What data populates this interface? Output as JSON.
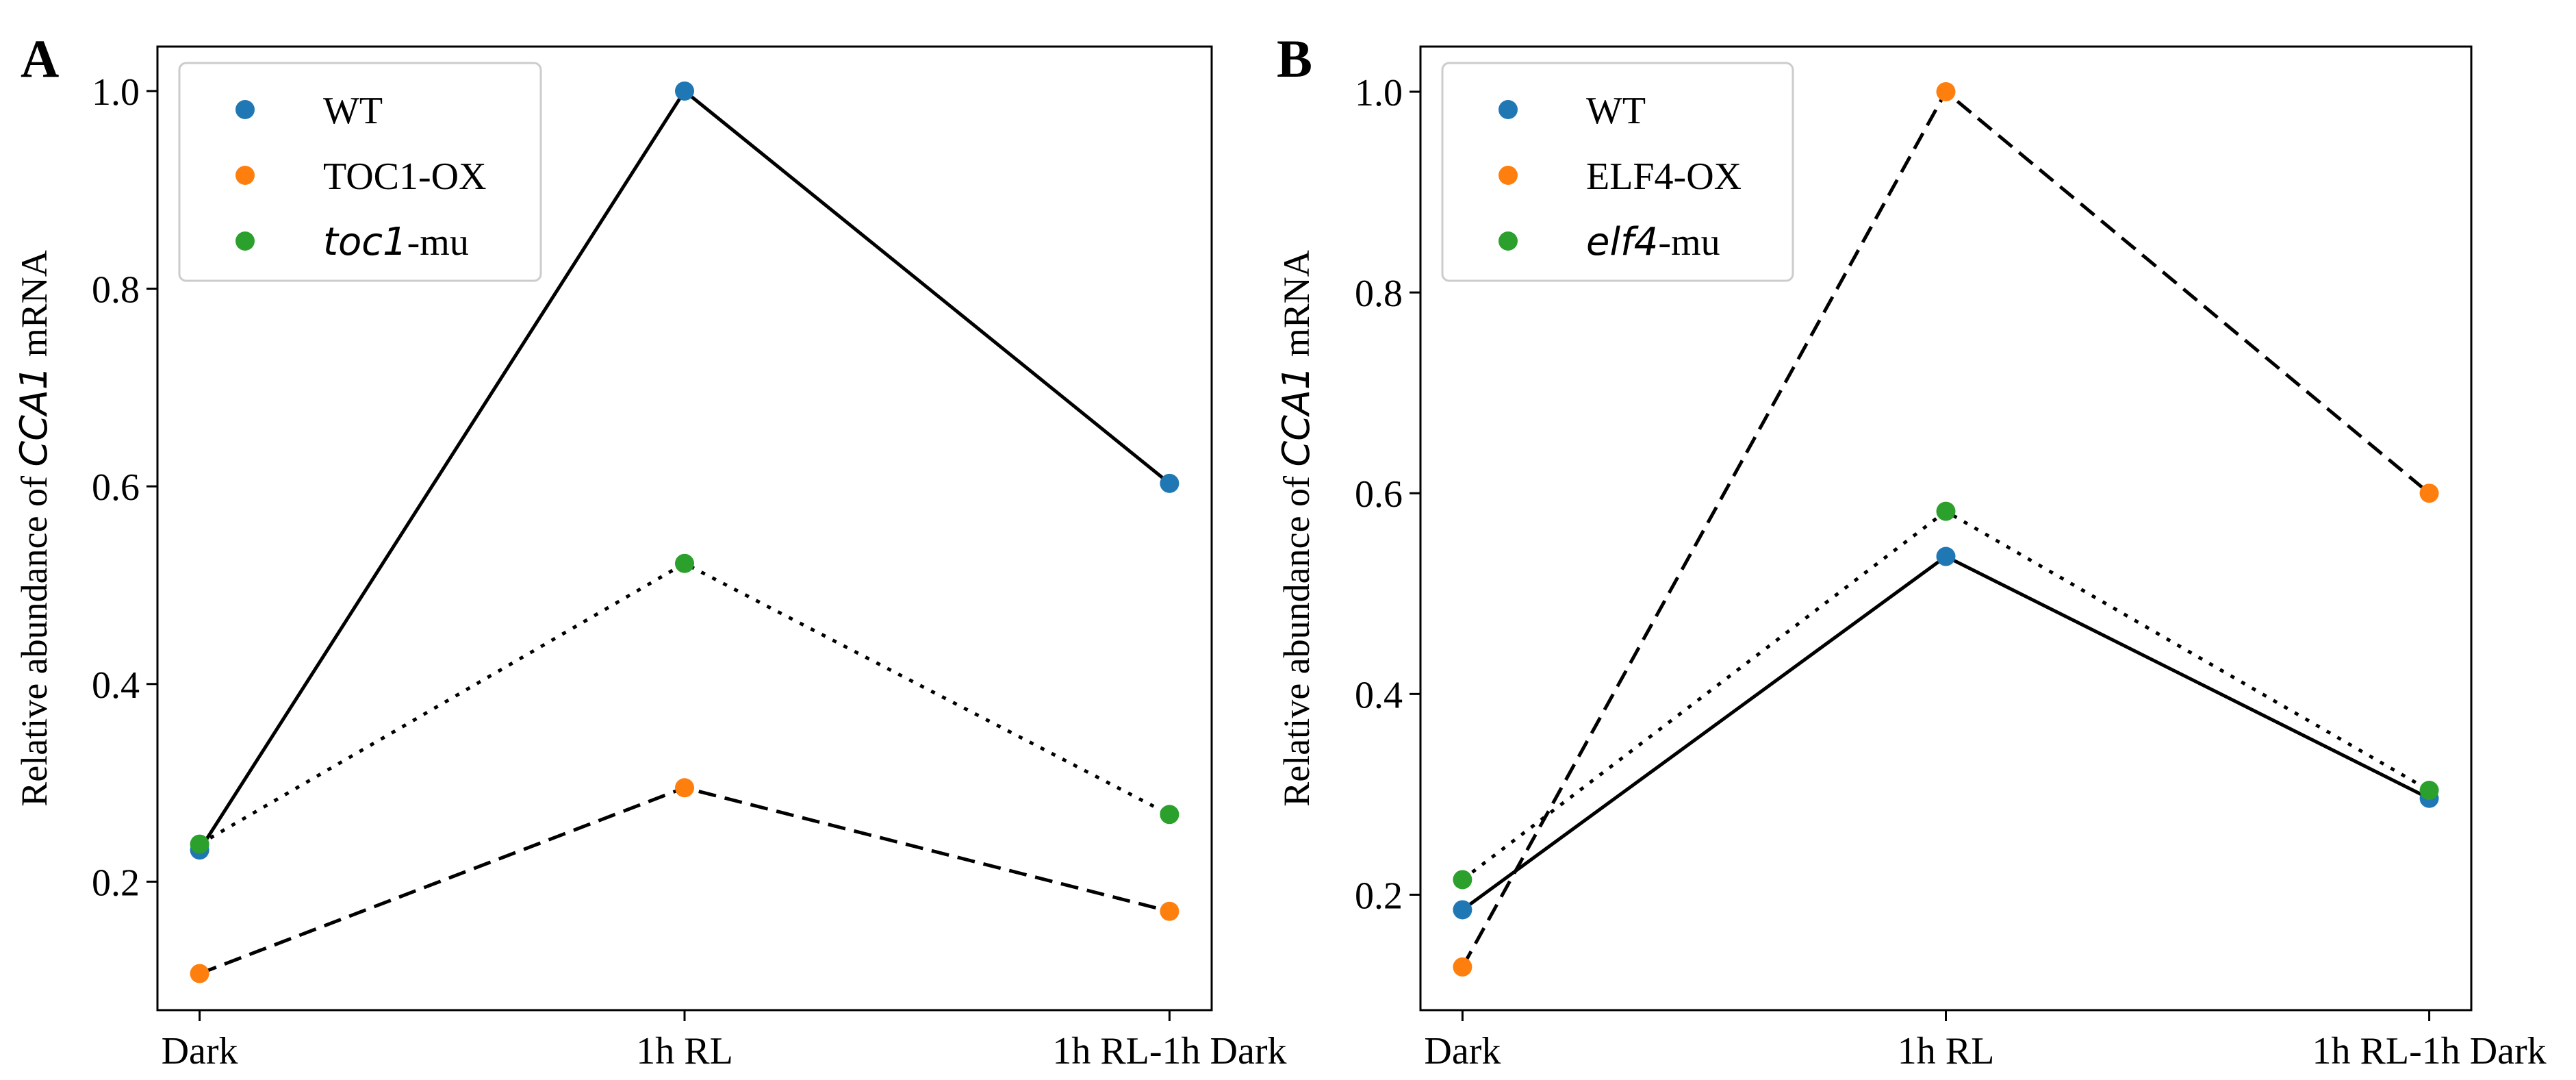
{
  "chart_data": [
    {
      "type": "line",
      "panel_label": "A",
      "ylabel": {
        "pre": "Relative abundance of ",
        "gene": "CCA1",
        "post": " mRNA"
      },
      "categories": [
        "Dark",
        "1h RL",
        "1h RL-1h Dark"
      ],
      "yticks": [
        "0.2",
        "0.4",
        "0.6",
        "0.8",
        "1.0"
      ],
      "ylim": [
        0.07,
        1.045
      ],
      "legend_position": "top-left",
      "series": [
        {
          "name": "WT",
          "label": {
            "main": "WT",
            "suffix": ""
          },
          "values": [
            0.232,
            1.0,
            0.603
          ],
          "color": "#1f77b4",
          "line": "solid"
        },
        {
          "name": "TOC1-OX",
          "label": {
            "main": "TOC1-OX",
            "suffix": ""
          },
          "values": [
            0.107,
            0.295,
            0.17
          ],
          "color": "#ff7f0e",
          "line": "dashed"
        },
        {
          "name": "toc1-mu",
          "label": {
            "main": "toc1",
            "suffix": "-mu"
          },
          "italic_part": true,
          "values": [
            0.238,
            0.522,
            0.268
          ],
          "color": "#2ca02c",
          "line": "dotted"
        }
      ]
    },
    {
      "type": "line",
      "panel_label": "B",
      "ylabel": {
        "pre": "Relative abundance of ",
        "gene": "CCA1",
        "post": " mRNA"
      },
      "categories": [
        "Dark",
        "1h RL",
        "1h RL-1h Dark"
      ],
      "yticks": [
        "0.2",
        "0.4",
        "0.6",
        "0.8",
        "1.0"
      ],
      "ylim": [
        0.085,
        1.045
      ],
      "legend_position": "top-left",
      "series": [
        {
          "name": "WT",
          "label": {
            "main": "WT",
            "suffix": ""
          },
          "values": [
            0.185,
            0.537,
            0.296
          ],
          "color": "#1f77b4",
          "line": "solid"
        },
        {
          "name": "ELF4-OX",
          "label": {
            "main": "ELF4-OX",
            "suffix": ""
          },
          "values": [
            0.128,
            1.0,
            0.6
          ],
          "color": "#ff7f0e",
          "line": "dashed"
        },
        {
          "name": "elf4-mu",
          "label": {
            "main": "elf4",
            "suffix": "-mu"
          },
          "italic_part": true,
          "values": [
            0.215,
            0.582,
            0.304
          ],
          "color": "#2ca02c",
          "line": "dotted"
        }
      ]
    }
  ]
}
